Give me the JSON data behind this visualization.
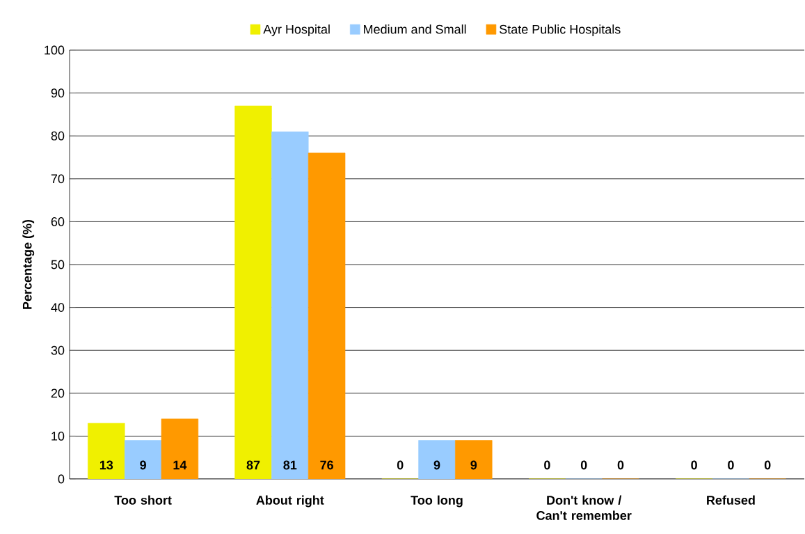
{
  "chart_data": {
    "type": "bar",
    "ylabel": "Percentage (%)",
    "categories": [
      "Too short",
      "About right",
      "Too long",
      "Don't know / Can't remember",
      "Refused"
    ],
    "series": [
      {
        "name": "Ayr Hospital",
        "color": "#f0f000",
        "values": [
          13,
          87,
          0,
          0,
          0
        ]
      },
      {
        "name": "Medium and Small",
        "color": "#99ccff",
        "values": [
          9,
          81,
          9,
          0,
          0
        ]
      },
      {
        "name": "State Public Hospitals",
        "color": "#ff9900",
        "values": [
          14,
          76,
          9,
          0,
          0
        ]
      }
    ],
    "ylim": [
      0,
      100
    ],
    "yticks": [
      0,
      10,
      20,
      30,
      40,
      50,
      60,
      70,
      80,
      90,
      100
    ],
    "grid": "y",
    "legend": "top",
    "data_labels": true
  }
}
